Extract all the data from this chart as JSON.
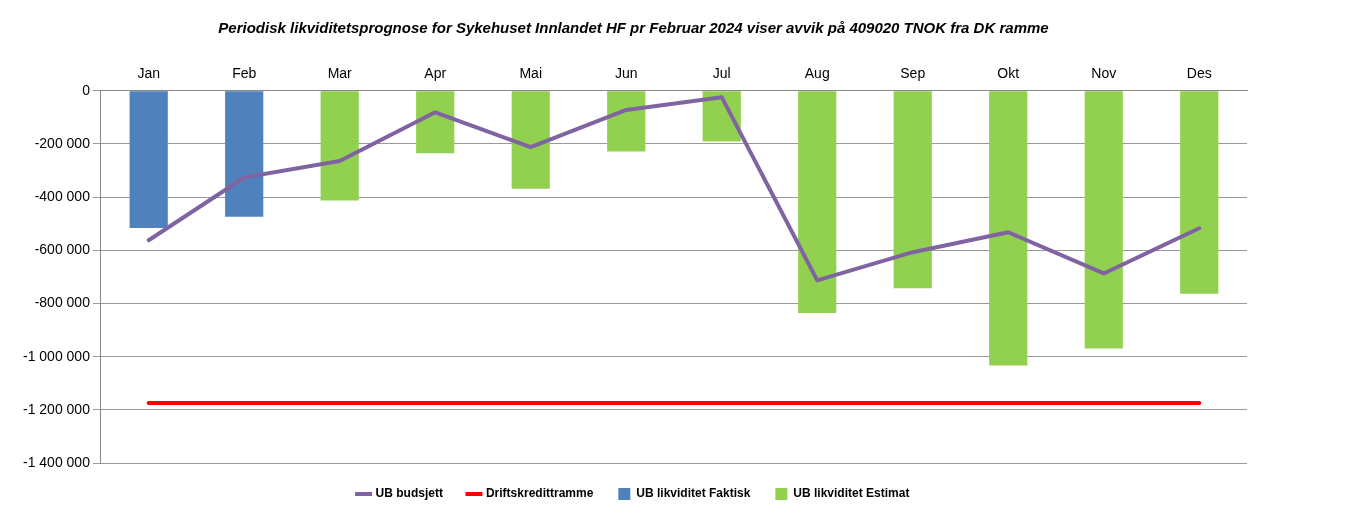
{
  "chart_data": {
    "type": "bar",
    "title": "Periodisk likviditetsprognose for Sykehuset Innlandet HF pr Februar 2024 viser avvik på 409020 TNOK fra DK ramme",
    "categories": [
      "Jan",
      "Feb",
      "Mar",
      "Apr",
      "Mai",
      "Jun",
      "Jul",
      "Aug",
      "Sep",
      "Okt",
      "Nov",
      "Des"
    ],
    "stacked": true,
    "series": [
      {
        "name": "UB likviditet Faktisk",
        "color": "#4f81bd",
        "values": [
          -516000,
          -474000,
          null,
          null,
          null,
          null,
          null,
          null,
          null,
          null,
          null,
          null
        ]
      },
      {
        "name": "UB likviditet Estimat",
        "color": "#92d050",
        "values": [
          null,
          null,
          -413000,
          -235000,
          -368000,
          -228000,
          -191000,
          -836000,
          -743000,
          -1033000,
          -969000,
          -763000
        ]
      },
      {
        "name": "UB budsjett",
        "type": "line",
        "color": "#8064a2",
        "values": [
          -562000,
          -326000,
          -264000,
          -81000,
          -212000,
          -72000,
          -24000,
          -713000,
          -607000,
          -532000,
          -687000,
          -517000
        ]
      },
      {
        "name": "Driftskredittramme",
        "type": "line",
        "color": "#ff0000",
        "values": [
          -1174000,
          -1174000,
          -1174000,
          -1174000,
          -1174000,
          -1174000,
          -1174000,
          -1174000,
          -1174000,
          -1174000,
          -1174000,
          -1174000
        ]
      }
    ],
    "ylim": [
      -1400000,
      0
    ],
    "yticks": [
      {
        "value": -1400000,
        "label": "-1 400 000"
      },
      {
        "value": -1200000,
        "label": "-1 200 000"
      },
      {
        "value": -1000000,
        "label": "-1 000 000"
      },
      {
        "value": -800000,
        "label": "-800 000"
      },
      {
        "value": -600000,
        "label": "-600 000"
      },
      {
        "value": -400000,
        "label": "-400 000"
      },
      {
        "value": -200000,
        "label": "-200 000"
      },
      0
    ],
    "grid": "y",
    "legend": "bottom",
    "marker": "none",
    "line_style": "solid"
  }
}
